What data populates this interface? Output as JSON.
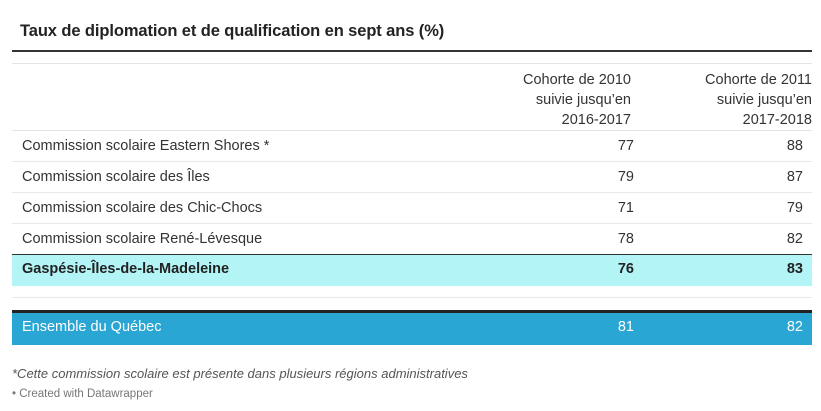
{
  "chart_data": {
    "type": "table",
    "title": "Taux de diplomation et de qualification en sept ans (%)",
    "columns": [
      {
        "lines": [
          "Cohorte de 2010",
          "suivie jusqu’en",
          "2016-2017"
        ]
      },
      {
        "lines": [
          "Cohorte de 2011",
          "suivie jusqu’en",
          "2017-2018"
        ]
      }
    ],
    "rows": [
      {
        "label": "Commission scolaire Eastern Shores *",
        "v1": "77",
        "v2": "88"
      },
      {
        "label": "Commission scolaire des Îles",
        "v1": "79",
        "v2": "87"
      },
      {
        "label": "Commission scolaire des Chic-Chocs",
        "v1": "71",
        "v2": "79"
      },
      {
        "label": "Commission scolaire René-Lévesque",
        "v1": "78",
        "v2": "82"
      }
    ],
    "region": {
      "label": "Gaspésie-Îles-de-la-Madeleine",
      "v1": "76",
      "v2": "83"
    },
    "total": {
      "label": "Ensemble du Québec",
      "v1": "81",
      "v2": "82"
    },
    "note": "*Cette commission scolaire est présente dans plusieurs régions administratives",
    "credit": "• Created with Datawrapper",
    "colors": {
      "highlight": "#b3f4f6",
      "total": "#2aa6d4"
    }
  }
}
